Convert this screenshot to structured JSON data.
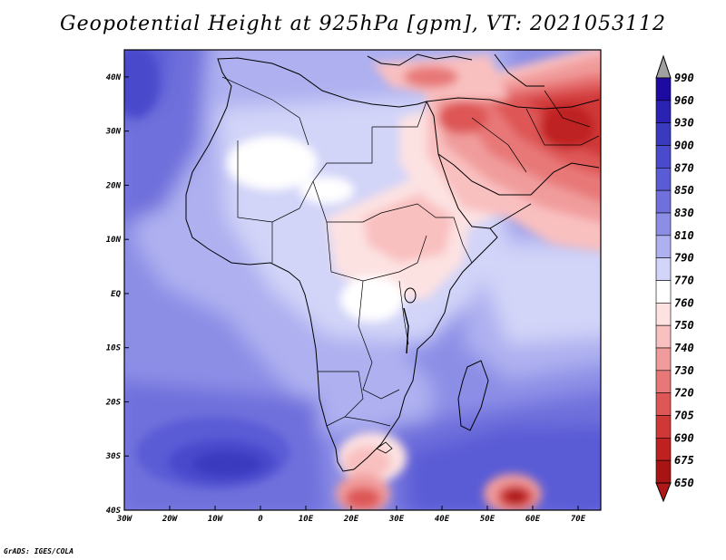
{
  "title": "Geopotential Height at 925hPa [gpm], VT: 2021053112",
  "credit": "GrADS: IGES/COLA",
  "map": {
    "lon_range": [
      -30,
      75
    ],
    "lat_range": [
      -40,
      45
    ],
    "lon_ticks": [
      "30W",
      "20W",
      "10W",
      "0",
      "10E",
      "20E",
      "30E",
      "40E",
      "50E",
      "60E",
      "70E"
    ],
    "lat_ticks": [
      "40N",
      "30N",
      "20N",
      "10N",
      "EQ",
      "10S",
      "20S",
      "30S",
      "40S"
    ]
  },
  "colorbar": {
    "levels": [
      "990",
      "960",
      "930",
      "900",
      "870",
      "850",
      "830",
      "810",
      "790",
      "770",
      "760",
      "750",
      "740",
      "730",
      "720",
      "705",
      "690",
      "675",
      "650"
    ],
    "colors": [
      "#a0a0a0",
      "#1e0aa0",
      "#2a22b2",
      "#3a3ac0",
      "#4a4acc",
      "#5a5cd6",
      "#7070dc",
      "#8c8ee6",
      "#aeb0f0",
      "#d2d4f8",
      "#ffffff",
      "#fde2e2",
      "#f9c0c0",
      "#f19c9c",
      "#e87878",
      "#de5656",
      "#d03838",
      "#bf2020",
      "#a81414",
      "#b01818"
    ]
  }
}
